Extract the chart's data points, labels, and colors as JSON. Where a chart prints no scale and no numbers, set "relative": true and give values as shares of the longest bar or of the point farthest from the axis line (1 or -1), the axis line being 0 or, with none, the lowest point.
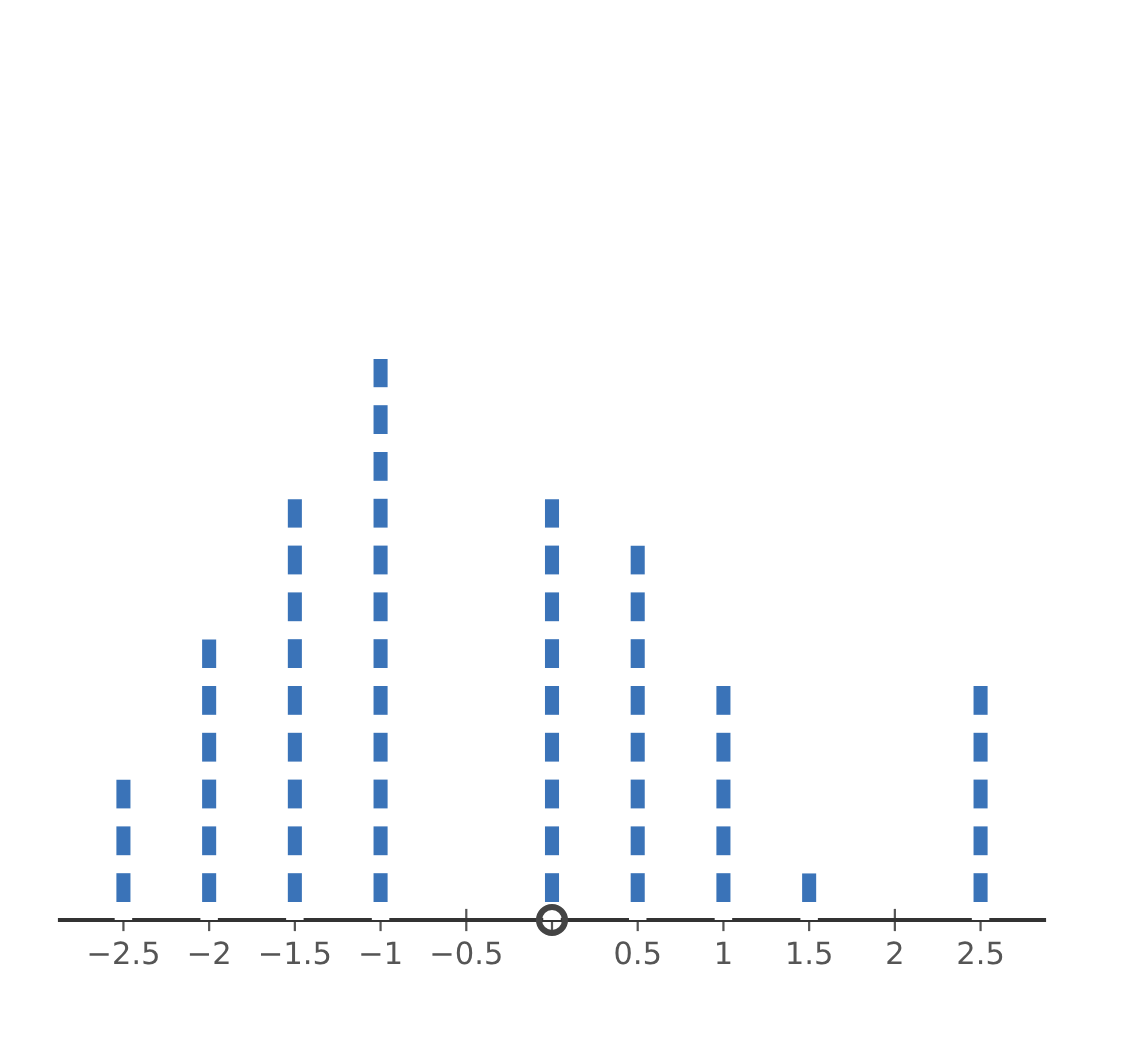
{
  "chart_data": {
    "type": "bar",
    "relative": true,
    "color": "#3a73b8",
    "grid": false,
    "x": [
      -2.5,
      -2,
      -1.5,
      -1,
      0,
      0.5,
      1,
      1.5,
      2.5
    ],
    "values": [
      0.25,
      0.5,
      0.75,
      1,
      0.75,
      0.667,
      0.417,
      0.083,
      0.417
    ],
    "xlim": [
      -2.87,
      2.87
    ],
    "xticks": [
      {
        "value": -2.5,
        "label": "−2.5"
      },
      {
        "value": -2,
        "label": "−2"
      },
      {
        "value": -1.5,
        "label": "−1.5"
      },
      {
        "value": -1,
        "label": "−1"
      },
      {
        "value": -0.5,
        "label": "−0.5"
      },
      {
        "value": 0,
        "label": null
      },
      0.5,
      1,
      1.5,
      2,
      2.5
    ]
  }
}
